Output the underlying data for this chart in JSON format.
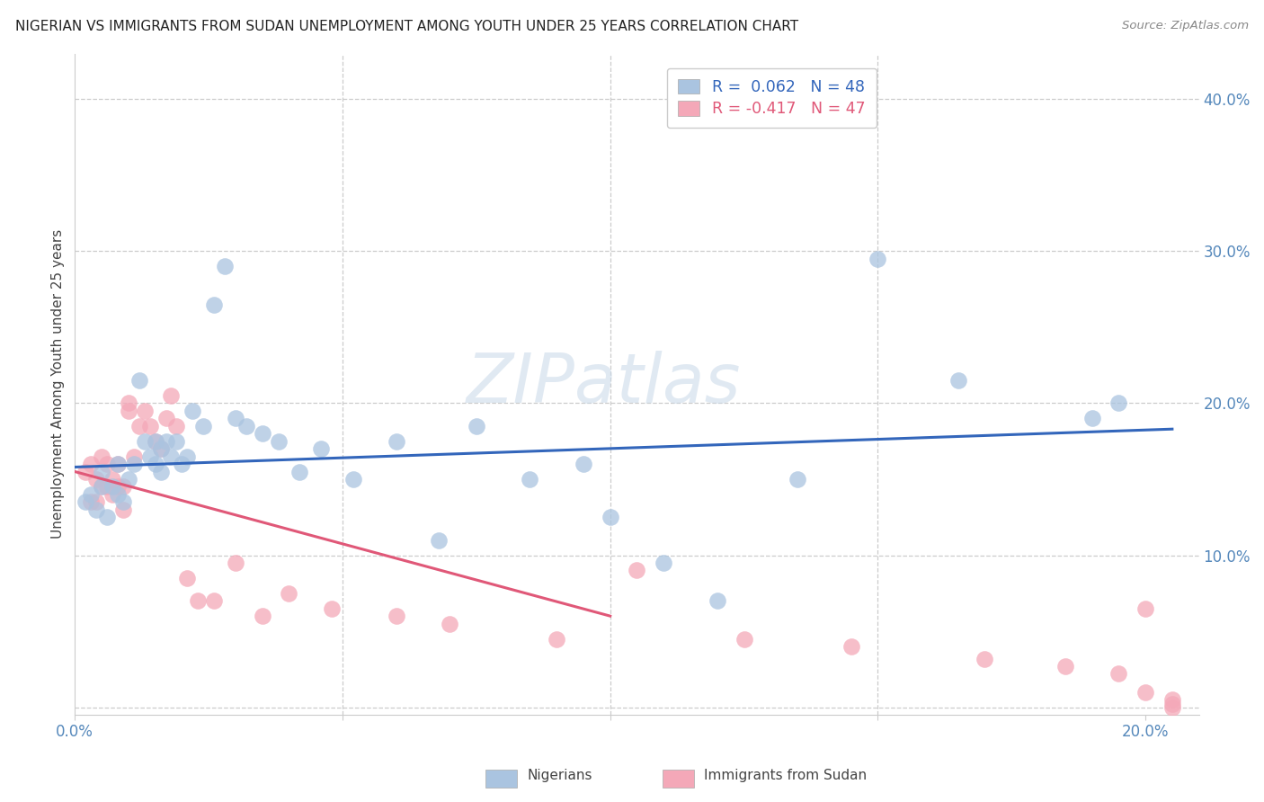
{
  "title": "NIGERIAN VS IMMIGRANTS FROM SUDAN UNEMPLOYMENT AMONG YOUTH UNDER 25 YEARS CORRELATION CHART",
  "source": "Source: ZipAtlas.com",
  "ylabel": "Unemployment Among Youth under 25 years",
  "xlim": [
    0.0,
    0.21
  ],
  "ylim": [
    -0.005,
    0.43
  ],
  "yticks": [
    0.0,
    0.1,
    0.2,
    0.3,
    0.4
  ],
  "ytick_labels": [
    "",
    "10.0%",
    "20.0%",
    "30.0%",
    "40.0%"
  ],
  "xtick_positions": [
    0.0,
    0.05,
    0.1,
    0.15,
    0.2
  ],
  "xtick_labels": [
    "0.0%",
    "",
    "",
    "",
    "20.0%"
  ],
  "legend_blue_r": "R =  0.062",
  "legend_blue_n": "N = 48",
  "legend_pink_r": "R = -0.417",
  "legend_pink_n": "N = 47",
  "legend_label_blue": "Nigerians",
  "legend_label_pink": "Immigrants from Sudan",
  "color_blue": "#aac4e0",
  "color_pink": "#f4a8b8",
  "color_blue_line": "#3366bb",
  "color_pink_line": "#e05878",
  "color_axis_text": "#5588bb",
  "watermark_text": "ZIPatlas",
  "blue_scatter_x": [
    0.002,
    0.003,
    0.004,
    0.005,
    0.005,
    0.006,
    0.007,
    0.008,
    0.008,
    0.009,
    0.01,
    0.011,
    0.012,
    0.013,
    0.014,
    0.015,
    0.015,
    0.016,
    0.016,
    0.017,
    0.018,
    0.019,
    0.02,
    0.021,
    0.022,
    0.024,
    0.026,
    0.028,
    0.03,
    0.032,
    0.035,
    0.038,
    0.042,
    0.046,
    0.052,
    0.06,
    0.068,
    0.075,
    0.085,
    0.095,
    0.1,
    0.11,
    0.12,
    0.135,
    0.15,
    0.165,
    0.19,
    0.195
  ],
  "blue_scatter_y": [
    0.135,
    0.14,
    0.13,
    0.145,
    0.155,
    0.125,
    0.145,
    0.14,
    0.16,
    0.135,
    0.15,
    0.16,
    0.215,
    0.175,
    0.165,
    0.16,
    0.175,
    0.17,
    0.155,
    0.175,
    0.165,
    0.175,
    0.16,
    0.165,
    0.195,
    0.185,
    0.265,
    0.29,
    0.19,
    0.185,
    0.18,
    0.175,
    0.155,
    0.17,
    0.15,
    0.175,
    0.11,
    0.185,
    0.15,
    0.16,
    0.125,
    0.095,
    0.07,
    0.15,
    0.295,
    0.215,
    0.19,
    0.2
  ],
  "pink_scatter_x": [
    0.002,
    0.003,
    0.003,
    0.004,
    0.004,
    0.005,
    0.005,
    0.006,
    0.006,
    0.007,
    0.007,
    0.008,
    0.008,
    0.009,
    0.009,
    0.01,
    0.01,
    0.011,
    0.012,
    0.013,
    0.014,
    0.015,
    0.016,
    0.017,
    0.018,
    0.019,
    0.021,
    0.023,
    0.026,
    0.03,
    0.035,
    0.04,
    0.048,
    0.06,
    0.07,
    0.09,
    0.105,
    0.125,
    0.145,
    0.17,
    0.185,
    0.195,
    0.2,
    0.2,
    0.205,
    0.205,
    0.205
  ],
  "pink_scatter_y": [
    0.155,
    0.135,
    0.16,
    0.135,
    0.15,
    0.145,
    0.165,
    0.145,
    0.16,
    0.15,
    0.14,
    0.145,
    0.16,
    0.13,
    0.145,
    0.2,
    0.195,
    0.165,
    0.185,
    0.195,
    0.185,
    0.175,
    0.17,
    0.19,
    0.205,
    0.185,
    0.085,
    0.07,
    0.07,
    0.095,
    0.06,
    0.075,
    0.065,
    0.06,
    0.055,
    0.045,
    0.09,
    0.045,
    0.04,
    0.032,
    0.027,
    0.022,
    0.01,
    0.065,
    0.005,
    0.002,
    0.0
  ],
  "blue_line_x": [
    0.0,
    0.205
  ],
  "blue_line_y": [
    0.158,
    0.183
  ],
  "pink_line_x": [
    0.0,
    0.1
  ],
  "pink_line_y": [
    0.155,
    0.06
  ]
}
